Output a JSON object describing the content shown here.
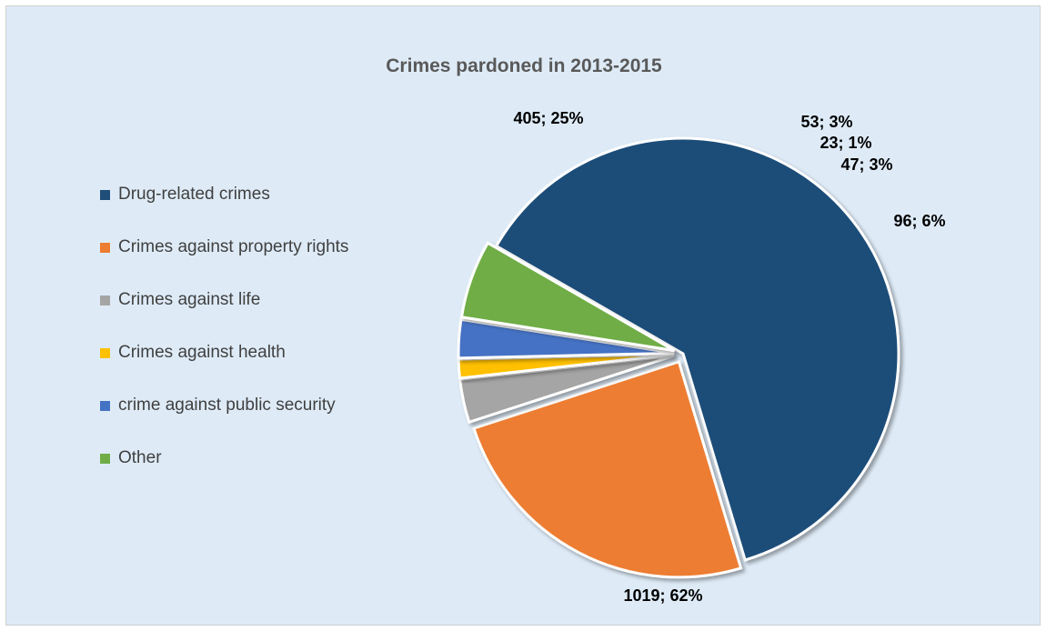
{
  "chart_data": {
    "type": "pie",
    "title": "Crimes pardoned in 2013-2015",
    "legend_position": "left",
    "slices": [
      {
        "name": "Drug-related crimes",
        "value": 1019,
        "percent": "62%",
        "label": "1019; 62%",
        "color": "#1f4e79"
      },
      {
        "name": "Crimes against property rights",
        "value": 405,
        "percent": "25%",
        "label": "405; 25%",
        "color": "#ed7d31"
      },
      {
        "name": "Crimes against life",
        "value": 53,
        "percent": "3%",
        "label": "53; 3%",
        "color": "#a5a5a5"
      },
      {
        "name": "Crimes against health",
        "value": 23,
        "percent": "1%",
        "label": "23; 1%",
        "color": "#ffc000"
      },
      {
        "name": "crime against public security",
        "value": 47,
        "percent": "3%",
        "label": "47; 3%",
        "color": "#4472c4"
      },
      {
        "name": "Other",
        "value": 96,
        "percent": "6%",
        "label": "96; 6%",
        "color": "#70ad47"
      }
    ]
  }
}
